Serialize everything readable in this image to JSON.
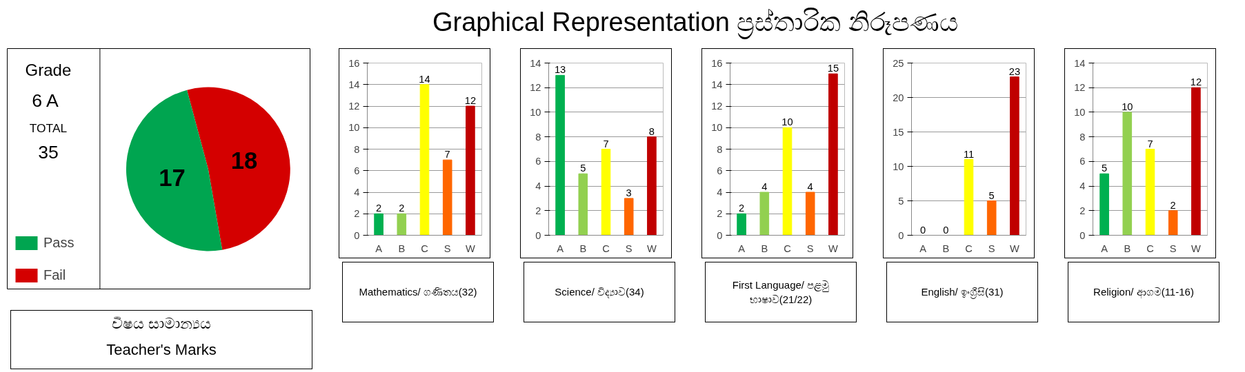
{
  "chart_data": [
    {
      "type": "other",
      "title": "Graphical Representation ප්‍රස්තාරික නිරූපණය"
    },
    {
      "type": "pie",
      "categories": [
        "Pass",
        "Fail"
      ],
      "values": [
        17,
        18
      ],
      "colors": [
        "#00a550",
        "#d40000"
      ],
      "data_labels": true,
      "legend": "bottom left",
      "annotations": [
        "Grade",
        "6 A",
        "TOTAL",
        "35",
        "විෂය සාමාන්‍යය",
        "Teacher's Marks"
      ]
    },
    {
      "type": "bar",
      "xlabel": "Mathematics/ ගණිතය(32)",
      "categories": [
        "A",
        "B",
        "C",
        "S",
        "W"
      ],
      "values": [
        2,
        2,
        14,
        7,
        12
      ],
      "colors": [
        "#00b050",
        "#92d050",
        "#ffff00",
        "#ff6600",
        "#c00000"
      ],
      "ylim": [
        0,
        16
      ],
      "yticks": [
        0,
        2,
        4,
        6,
        8,
        10,
        12,
        14,
        16
      ],
      "grid": "y",
      "data_labels": true
    },
    {
      "type": "bar",
      "xlabel": "Science/ විද්‍යාව(34)",
      "categories": [
        "A",
        "B",
        "C",
        "S",
        "W"
      ],
      "values": [
        13,
        5,
        7,
        3,
        8
      ],
      "colors": [
        "#00b050",
        "#92d050",
        "#ffff00",
        "#ff6600",
        "#c00000"
      ],
      "ylim": [
        0,
        14
      ],
      "yticks": [
        0,
        2,
        4,
        6,
        8,
        10,
        12,
        14
      ],
      "grid": "y",
      "data_labels": true
    },
    {
      "type": "bar",
      "xlabel": "First Language/ පළමු භාෂාව(21/22)",
      "categories": [
        "A",
        "B",
        "C",
        "S",
        "W"
      ],
      "values": [
        2,
        4,
        10,
        4,
        15
      ],
      "colors": [
        "#00b050",
        "#92d050",
        "#ffff00",
        "#ff6600",
        "#c00000"
      ],
      "ylim": [
        0,
        16
      ],
      "yticks": [
        0,
        2,
        4,
        6,
        8,
        10,
        12,
        14,
        16
      ],
      "grid": "y",
      "data_labels": true
    },
    {
      "type": "bar",
      "xlabel": "English/ ඉංග්‍රීසි(31)",
      "categories": [
        "A",
        "B",
        "C",
        "S",
        "W"
      ],
      "values": [
        0,
        0,
        11,
        5,
        23
      ],
      "colors": [
        "#00b050",
        "#92d050",
        "#ffff00",
        "#ff6600",
        "#c00000"
      ],
      "ylim": [
        0,
        25
      ],
      "yticks": [
        0,
        5,
        10,
        15,
        20,
        25
      ],
      "grid": "y",
      "data_labels": true
    },
    {
      "type": "bar",
      "xlabel": "Religion/ ආගම(11-16)",
      "categories": [
        "A",
        "B",
        "C",
        "S",
        "W"
      ],
      "values": [
        5,
        10,
        7,
        2,
        12
      ],
      "colors": [
        "#00b050",
        "#92d050",
        "#ffff00",
        "#ff6600",
        "#c00000"
      ],
      "ylim": [
        0,
        14
      ],
      "yticks": [
        0,
        2,
        4,
        6,
        8,
        10,
        12,
        14
      ],
      "grid": "y",
      "data_labels": true
    }
  ]
}
